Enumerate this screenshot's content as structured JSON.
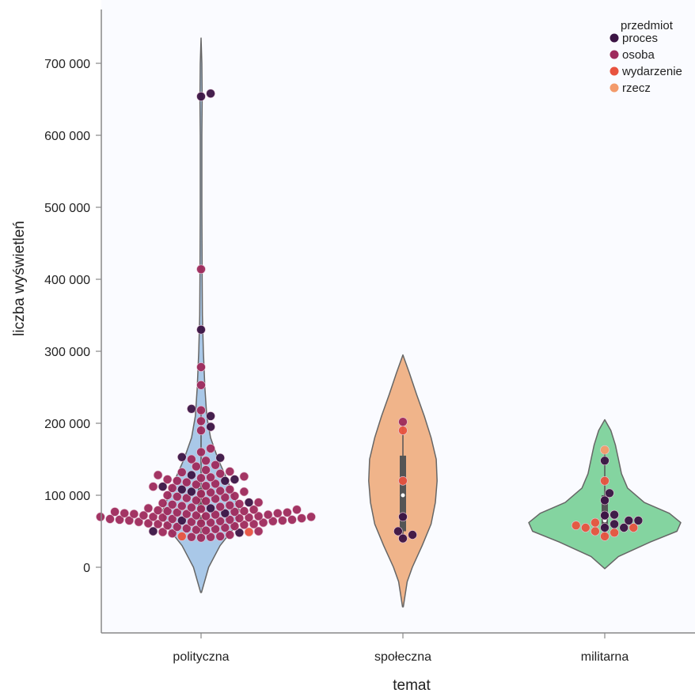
{
  "chart_data": {
    "type": "violin",
    "title": "",
    "xlabel": "temat",
    "ylabel": "liczba wyświetleń",
    "ylim": [
      -100000,
      780000
    ],
    "yticks": [
      0,
      100000,
      200000,
      300000,
      400000,
      500000,
      600000,
      700000
    ],
    "ytick_labels": [
      "0",
      "100 000",
      "200 000",
      "300 000",
      "400 000",
      "500 000",
      "600 000",
      "700 000"
    ],
    "categories": [
      "polityczna",
      "społeczna",
      "militarna"
    ],
    "grid": false,
    "legend": {
      "title": "przedmiot",
      "position": "top-right",
      "entries": [
        {
          "name": "proces",
          "color": "#3b1444"
        },
        {
          "name": "osoba",
          "color": "#9e2a5c"
        },
        {
          "name": "wydarzenie",
          "color": "#e8533f"
        },
        {
          "name": "rzecz",
          "color": "#f39a6a"
        }
      ]
    },
    "violin_colors": [
      "#a9c8e8",
      "#f0b48a",
      "#84d4a0"
    ],
    "violins": [
      {
        "category": "polityczna",
        "min": -35000,
        "max": 735000,
        "density": [
          [
            -35000,
            0.01
          ],
          [
            0,
            0.2
          ],
          [
            30000,
            0.5
          ],
          [
            60000,
            0.95
          ],
          [
            80000,
            1.0
          ],
          [
            100000,
            0.85
          ],
          [
            120000,
            0.7
          ],
          [
            150000,
            0.45
          ],
          [
            180000,
            0.25
          ],
          [
            210000,
            0.15
          ],
          [
            250000,
            0.1
          ],
          [
            300000,
            0.06
          ],
          [
            350000,
            0.035
          ],
          [
            400000,
            0.03
          ],
          [
            450000,
            0.025
          ],
          [
            500000,
            0.02
          ],
          [
            550000,
            0.02
          ],
          [
            600000,
            0.02
          ],
          [
            650000,
            0.03
          ],
          [
            700000,
            0.02
          ],
          [
            735000,
            0.0
          ]
        ]
      },
      {
        "category": "społeczna",
        "min": -55000,
        "max": 295000,
        "density": [
          [
            -55000,
            0.01
          ],
          [
            -20000,
            0.1
          ],
          [
            0,
            0.22
          ],
          [
            30000,
            0.45
          ],
          [
            60000,
            0.66
          ],
          [
            90000,
            0.76
          ],
          [
            120000,
            0.8
          ],
          [
            150000,
            0.78
          ],
          [
            180000,
            0.66
          ],
          [
            210000,
            0.5
          ],
          [
            240000,
            0.32
          ],
          [
            270000,
            0.15
          ],
          [
            295000,
            0.0
          ]
        ]
      },
      {
        "category": "militarna",
        "min": -2000,
        "max": 205000,
        "density": [
          [
            -2000,
            0.0
          ],
          [
            15000,
            0.18
          ],
          [
            35000,
            0.6
          ],
          [
            50000,
            0.95
          ],
          [
            62000,
            1.0
          ],
          [
            75000,
            0.85
          ],
          [
            90000,
            0.52
          ],
          [
            110000,
            0.3
          ],
          [
            130000,
            0.22
          ],
          [
            150000,
            0.18
          ],
          [
            170000,
            0.14
          ],
          [
            190000,
            0.08
          ],
          [
            205000,
            0.0
          ]
        ]
      }
    ],
    "boxes": [
      {
        "category": "polityczna",
        "q1": 60000,
        "median": 75000,
        "q3": 110000,
        "whisker_low": 40000,
        "whisker_high": 220000
      },
      {
        "category": "społeczna",
        "q1": 50000,
        "median": 100000,
        "q3": 155000,
        "whisker_low": 40000,
        "whisker_high": 200000
      },
      {
        "category": "militarna",
        "q1": 55000,
        "median": 65000,
        "q3": 100000,
        "whisker_low": 42000,
        "whisker_high": 160000
      }
    ],
    "points": [
      {
        "category": "polityczna",
        "przedmiot": "proces",
        "values": [
          658000,
          654000,
          330000,
          220000,
          210000,
          195000,
          152000,
          153000,
          128000,
          120000,
          122000,
          112000,
          108000,
          105000,
          90000,
          82000,
          75000,
          65000,
          50000,
          48000
        ]
      },
      {
        "category": "polityczna",
        "przedmiot": "osoba",
        "values": [
          414000,
          278000,
          253000,
          218000,
          203000,
          190000,
          165000,
          160000,
          150000,
          148000,
          142000,
          140000,
          135000,
          133000,
          132000,
          130000,
          128000,
          126000,
          125000,
          124000,
          122000,
          120000,
          118000,
          116000,
          115000,
          113000,
          112000,
          110000,
          108000,
          106000,
          105000,
          104000,
          102000,
          100000,
          99000,
          98000,
          97000,
          96000,
          95000,
          93000,
          92000,
          90000,
          89000,
          88000,
          87000,
          86000,
          85000,
          84000,
          83000,
          82000,
          81000,
          80000,
          80000,
          79000,
          78000,
          78000,
          77000,
          77000,
          76000,
          76000,
          75000,
          75000,
          74000,
          74000,
          73000,
          73000,
          72000,
          72000,
          71000,
          71000,
          70000,
          70000,
          70000,
          69000,
          69000,
          68000,
          68000,
          67000,
          67000,
          66000,
          66000,
          66000,
          65000,
          65000,
          64000,
          64000,
          63000,
          63000,
          62000,
          62000,
          61000,
          61000,
          60000,
          60000,
          59000,
          58000,
          57000,
          56000,
          55000,
          54000,
          53000,
          52000,
          51000,
          50000,
          49000,
          47000,
          45000,
          43000,
          42000,
          42000,
          41000
        ]
      },
      {
        "category": "polityczna",
        "przedmiot": "wydarzenie",
        "values": [
          49000,
          43000
        ]
      },
      {
        "category": "społeczna",
        "przedmiot": "proces",
        "values": [
          70000,
          50000,
          45000,
          40000
        ]
      },
      {
        "category": "społeczna",
        "przedmiot": "osoba",
        "values": [
          202000
        ]
      },
      {
        "category": "społeczna",
        "przedmiot": "wydarzenie",
        "values": [
          190000,
          120000
        ]
      },
      {
        "category": "militarna",
        "przedmiot": "proces",
        "values": [
          148000,
          103000,
          93000,
          73000,
          72000,
          65000,
          65000,
          60000,
          55000,
          55000
        ]
      },
      {
        "category": "militarna",
        "przedmiot": "wydarzenie",
        "values": [
          120000,
          62000,
          58000,
          55000,
          55000,
          50000,
          48000,
          43000
        ]
      },
      {
        "category": "militarna",
        "przedmiot": "rzecz",
        "values": [
          163000
        ]
      }
    ]
  }
}
